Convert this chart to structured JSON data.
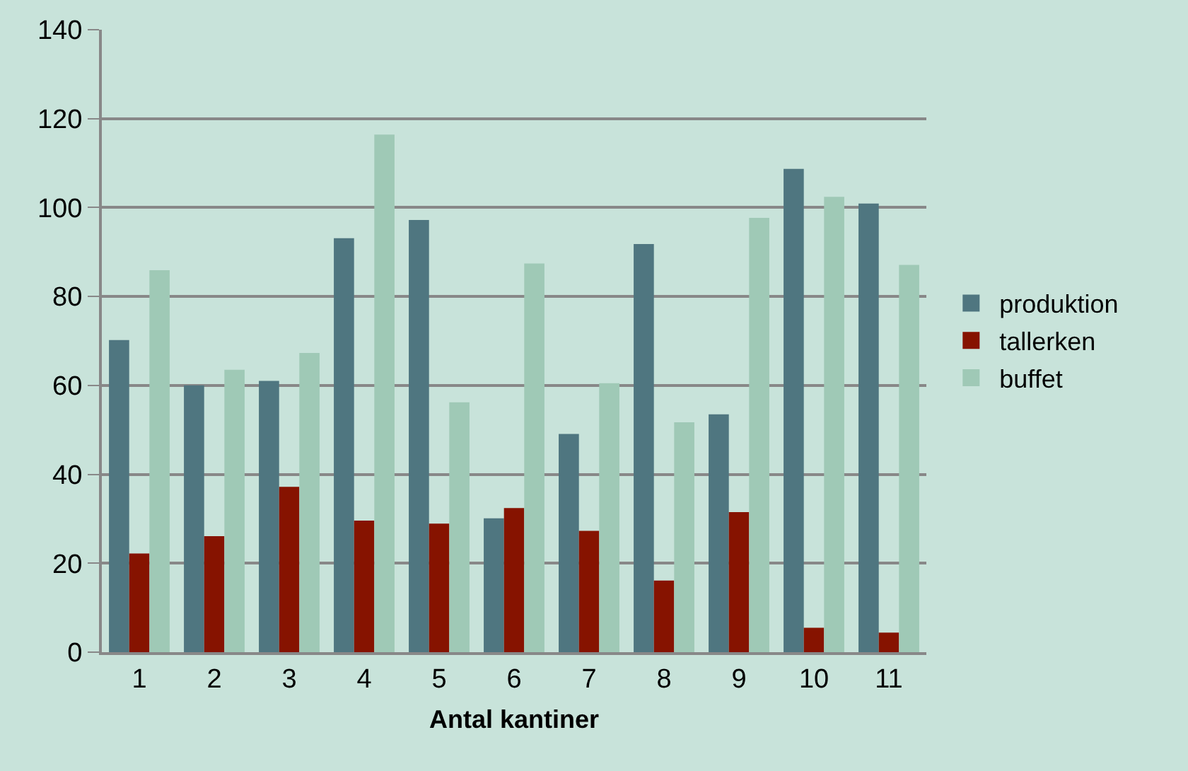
{
  "chart_data": {
    "type": "bar",
    "xlabel": "Antal kantiner",
    "categories": [
      "1",
      "2",
      "3",
      "4",
      "5",
      "6",
      "7",
      "8",
      "9",
      "10",
      "11"
    ],
    "series": [
      {
        "name": "produktion",
        "color": "#4f7680",
        "values": [
          70.2,
          60,
          61,
          93.1,
          97.2,
          30.1,
          49.1,
          91.8,
          53.5,
          108.7,
          100.9
        ]
      },
      {
        "name": "tallerken",
        "color": "#861300",
        "values": [
          22.2,
          26.1,
          37.2,
          29.6,
          28.9,
          32.4,
          27.3,
          16.1,
          31.5,
          5.5,
          4.4
        ]
      },
      {
        "name": "buffet",
        "color": "#9fc9b6",
        "values": [
          85.9,
          63.5,
          67.3,
          116.4,
          56.2,
          87.4,
          60.5,
          51.7,
          97.7,
          102.4,
          87.1
        ]
      }
    ],
    "ylim": [
      0,
      140
    ],
    "yticks": [
      0,
      20,
      40,
      60,
      80,
      100,
      120,
      140
    ],
    "grid": "y",
    "legend": "right"
  }
}
